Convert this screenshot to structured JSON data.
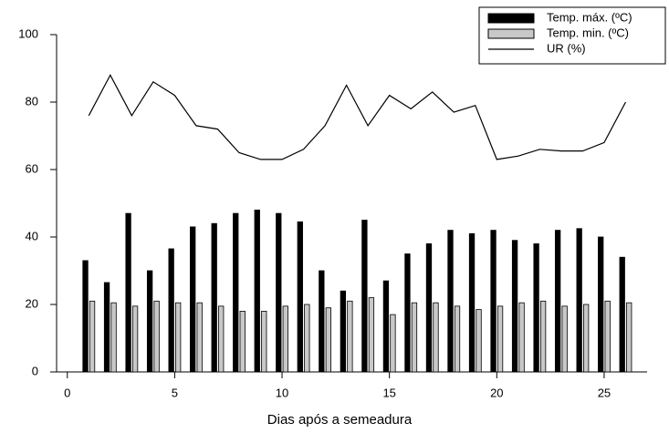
{
  "chart_data": {
    "type": "bar-line",
    "x_label": "Dias após a semeadura",
    "x": [
      1,
      2,
      3,
      4,
      5,
      6,
      7,
      8,
      9,
      10,
      11,
      12,
      13,
      14,
      15,
      16,
      17,
      18,
      19,
      20,
      21,
      22,
      23,
      24,
      25,
      26
    ],
    "series": [
      {
        "name": "Temp. máx. (ºC)",
        "type": "bar",
        "color": "#000000",
        "values": [
          33,
          26.5,
          47,
          30,
          36.5,
          43,
          44,
          47,
          48,
          47,
          44.5,
          30,
          24,
          45,
          27,
          35,
          38,
          42,
          41,
          42,
          39,
          38,
          42,
          42.5,
          40,
          34
        ]
      },
      {
        "name": "Temp. min. (ºC)",
        "type": "bar",
        "color": "#c8c8c8",
        "values": [
          21,
          20.5,
          19.5,
          21,
          20.5,
          20.5,
          19.5,
          18,
          18,
          19.5,
          20,
          19,
          21,
          22,
          17,
          20.5,
          20.5,
          19.5,
          18.5,
          19.5,
          20.5,
          21,
          19.5,
          20,
          21,
          20.5
        ]
      },
      {
        "name": "UR (%)",
        "type": "line",
        "color": "#000000",
        "values": [
          76,
          88,
          76,
          86,
          82,
          73,
          72,
          65,
          63,
          63,
          66,
          73,
          85,
          73,
          82,
          78,
          83,
          77,
          79,
          63,
          64,
          66,
          65.5,
          65.5,
          68,
          80
        ]
      }
    ],
    "xlim": [
      -0.5,
      27
    ],
    "xticks": [
      0,
      5,
      10,
      15,
      20,
      25
    ],
    "ylim": [
      0,
      100
    ],
    "yticks": [
      0,
      20,
      40,
      60,
      80,
      100
    ],
    "grid": false,
    "legend": "top-right"
  }
}
